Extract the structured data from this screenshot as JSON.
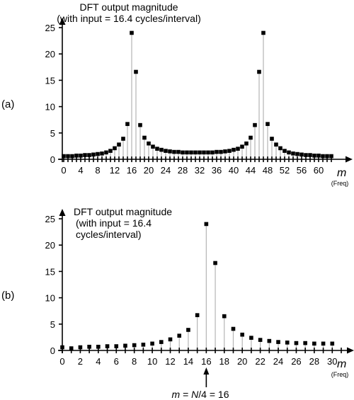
{
  "chart_data": [
    {
      "type": "stem",
      "panel_label": "(a)",
      "title_lines": [
        "DFT output magnitude",
        "(with input = 16.4 cycles/interval)"
      ],
      "xlabel": "m",
      "xlabel_sub": "(Freq)",
      "xlim": [
        0,
        63
      ],
      "ylim": [
        0,
        25
      ],
      "xticks": [
        0,
        4,
        8,
        12,
        16,
        20,
        24,
        28,
        32,
        36,
        40,
        44,
        48,
        52,
        56,
        60
      ],
      "yticks": [
        0,
        5,
        10,
        15,
        20,
        25
      ],
      "x": [
        0,
        1,
        2,
        3,
        4,
        5,
        6,
        7,
        8,
        9,
        10,
        11,
        12,
        13,
        14,
        15,
        16,
        17,
        18,
        19,
        20,
        21,
        22,
        23,
        24,
        25,
        26,
        27,
        28,
        29,
        30,
        31,
        32,
        33,
        34,
        35,
        36,
        37,
        38,
        39,
        40,
        41,
        42,
        43,
        44,
        45,
        46,
        47,
        48,
        49,
        50,
        51,
        52,
        53,
        54,
        55,
        56,
        57,
        58,
        59,
        60,
        61,
        62,
        63
      ],
      "values": [
        0.6,
        0.6,
        0.6,
        0.7,
        0.7,
        0.8,
        0.8,
        0.9,
        1.0,
        1.1,
        1.3,
        1.6,
        2.1,
        2.8,
        3.9,
        6.7,
        24.0,
        16.6,
        6.5,
        4.1,
        3.0,
        2.4,
        2.0,
        1.8,
        1.6,
        1.5,
        1.4,
        1.4,
        1.3,
        1.3,
        1.3,
        1.3,
        1.3,
        1.3,
        1.3,
        1.3,
        1.4,
        1.4,
        1.5,
        1.6,
        1.8,
        2.0,
        2.4,
        3.0,
        4.1,
        6.5,
        16.6,
        24.0,
        6.7,
        3.9,
        2.8,
        2.1,
        1.6,
        1.3,
        1.1,
        1.0,
        0.9,
        0.8,
        0.8,
        0.7,
        0.7,
        0.6,
        0.6,
        0.6
      ]
    },
    {
      "type": "stem",
      "panel_label": "(b)",
      "title_lines": [
        "DFT output magnitude",
        "(with input = 16.4",
        "cycles/interval)"
      ],
      "xlabel": "m",
      "xlabel_sub": "(Freq)",
      "xlim": [
        0,
        31
      ],
      "ylim": [
        0,
        25
      ],
      "xticks": [
        0,
        2,
        4,
        6,
        8,
        10,
        12,
        14,
        16,
        18,
        20,
        22,
        24,
        26,
        28,
        30
      ],
      "yticks": [
        0,
        5,
        10,
        15,
        20,
        25
      ],
      "x": [
        0,
        1,
        2,
        3,
        4,
        5,
        6,
        7,
        8,
        9,
        10,
        11,
        12,
        13,
        14,
        15,
        16,
        17,
        18,
        19,
        20,
        21,
        22,
        23,
        24,
        25,
        26,
        27,
        28,
        29,
        30
      ],
      "values": [
        0.6,
        0.4,
        0.6,
        0.7,
        0.7,
        0.8,
        0.8,
        0.9,
        1.0,
        1.1,
        1.3,
        1.6,
        2.1,
        2.8,
        3.9,
        6.7,
        24.0,
        16.6,
        6.5,
        4.1,
        3.0,
        2.4,
        2.0,
        1.8,
        1.6,
        1.5,
        1.4,
        1.4,
        1.3,
        1.3,
        1.3
      ],
      "annotation": {
        "x": 16,
        "text_pre": "m",
        "text_mid": " = ",
        "text_n": "N",
        "text_post": "/4 = 16"
      }
    }
  ]
}
